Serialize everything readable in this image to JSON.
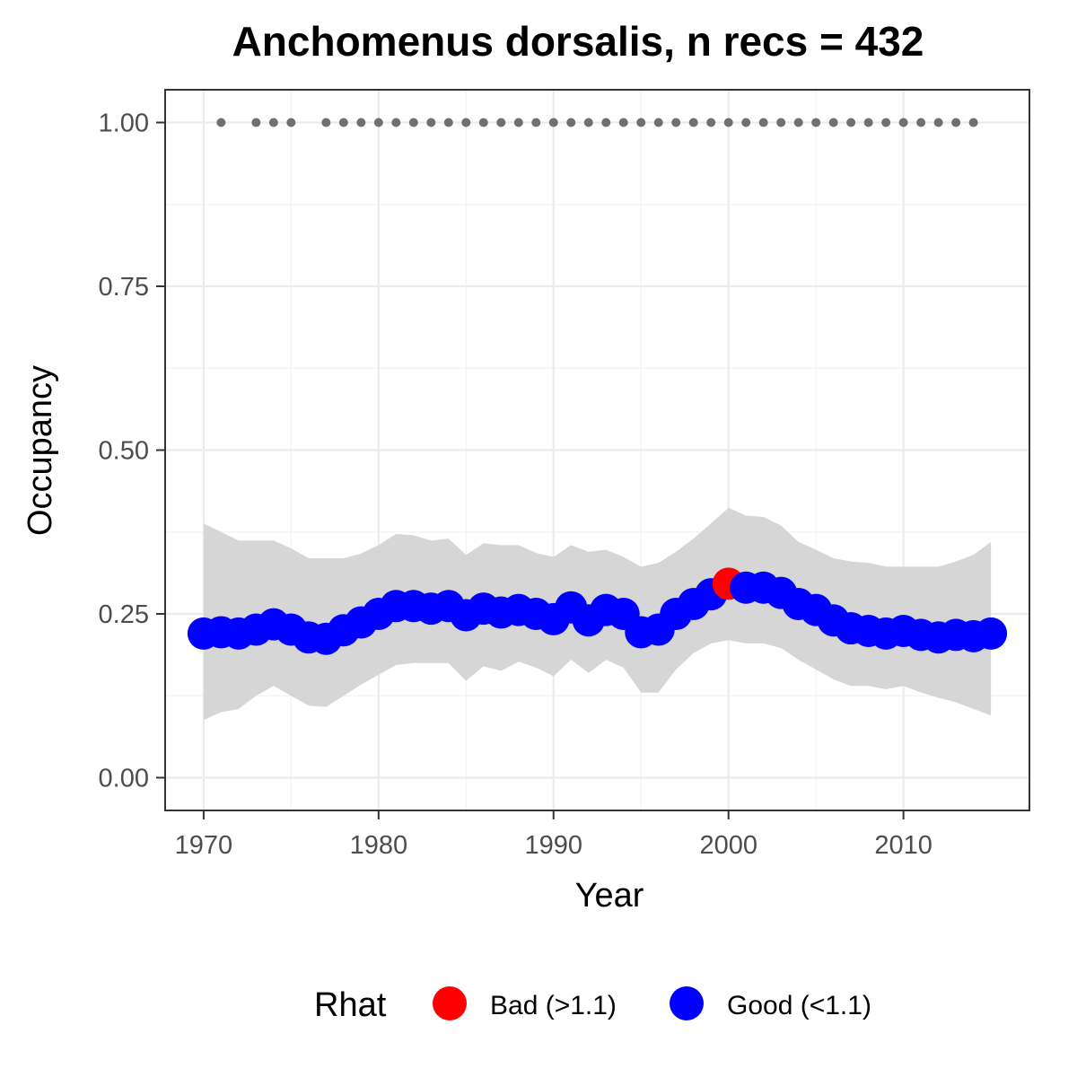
{
  "chart_data": {
    "type": "scatter",
    "title": "Anchomenus dorsalis, n recs = 432",
    "xlabel": "Year",
    "ylabel": "Occupancy",
    "xlim": [
      1967.8,
      2017.2
    ],
    "ylim": [
      -0.05,
      1.05
    ],
    "x_ticks": [
      1970,
      1980,
      1990,
      2000,
      2010
    ],
    "x_tick_labels": [
      "1970",
      "1980",
      "1990",
      "2000",
      "2010"
    ],
    "y_ticks": [
      0,
      0.25,
      0.5,
      0.75,
      1.0
    ],
    "y_tick_labels": [
      "0.00",
      "0.25",
      "0.50",
      "0.75",
      "1.00"
    ],
    "grid": true,
    "legend": {
      "position": "bottom",
      "title": "Rhat",
      "entries": [
        {
          "label": "Bad (>1.1)",
          "color": "#ff0000"
        },
        {
          "label": "Good (<1.1)",
          "color": "#0000ff"
        }
      ]
    },
    "series": [
      {
        "years": [
          1970,
          1971,
          1972,
          1973,
          1974,
          1975,
          1976,
          1977,
          1978,
          1979,
          1980,
          1981,
          1982,
          1983,
          1984,
          1985,
          1986,
          1987,
          1988,
          1989,
          1990,
          1991,
          1992,
          1993,
          1994,
          1995,
          1996,
          1997,
          1998,
          1999,
          2000,
          2001,
          2002,
          2003,
          2004,
          2005,
          2006,
          2007,
          2008,
          2009,
          2010,
          2011,
          2012,
          2013,
          2014,
          2015
        ],
        "occupancy": [
          0.22,
          0.222,
          0.22,
          0.226,
          0.234,
          0.226,
          0.214,
          0.212,
          0.225,
          0.237,
          0.25,
          0.262,
          0.262,
          0.258,
          0.262,
          0.248,
          0.258,
          0.252,
          0.256,
          0.25,
          0.242,
          0.26,
          0.24,
          0.256,
          0.25,
          0.222,
          0.226,
          0.25,
          0.265,
          0.28,
          0.296,
          0.29,
          0.29,
          0.282,
          0.265,
          0.256,
          0.24,
          0.228,
          0.224,
          0.22,
          0.224,
          0.218,
          0.214,
          0.218,
          0.216,
          0.22
        ],
        "rhat_class": [
          "Good",
          "Good",
          "Good",
          "Good",
          "Good",
          "Good",
          "Good",
          "Good",
          "Good",
          "Good",
          "Good",
          "Good",
          "Good",
          "Good",
          "Good",
          "Good",
          "Good",
          "Good",
          "Good",
          "Good",
          "Good",
          "Good",
          "Good",
          "Good",
          "Good",
          "Good",
          "Good",
          "Good",
          "Good",
          "Good",
          "Bad",
          "Good",
          "Good",
          "Good",
          "Good",
          "Good",
          "Good",
          "Good",
          "Good",
          "Good",
          "Good",
          "Good",
          "Good",
          "Good",
          "Good",
          "Good"
        ],
        "lower": [
          0.088,
          0.1,
          0.105,
          0.125,
          0.14,
          0.125,
          0.11,
          0.108,
          0.125,
          0.142,
          0.157,
          0.172,
          0.175,
          0.175,
          0.175,
          0.148,
          0.17,
          0.163,
          0.177,
          0.168,
          0.155,
          0.18,
          0.16,
          0.18,
          0.168,
          0.13,
          0.13,
          0.165,
          0.19,
          0.205,
          0.21,
          0.205,
          0.205,
          0.198,
          0.18,
          0.165,
          0.15,
          0.14,
          0.14,
          0.135,
          0.14,
          0.13,
          0.122,
          0.115,
          0.105,
          0.095
        ],
        "upper": [
          0.388,
          0.375,
          0.362,
          0.362,
          0.362,
          0.35,
          0.335,
          0.335,
          0.335,
          0.342,
          0.355,
          0.372,
          0.37,
          0.362,
          0.365,
          0.34,
          0.358,
          0.355,
          0.355,
          0.343,
          0.337,
          0.355,
          0.345,
          0.348,
          0.337,
          0.322,
          0.328,
          0.345,
          0.365,
          0.388,
          0.412,
          0.4,
          0.398,
          0.385,
          0.36,
          0.348,
          0.335,
          0.33,
          0.328,
          0.322,
          0.322,
          0.322,
          0.322,
          0.33,
          0.34,
          0.36
        ]
      },
      {
        "name": "records",
        "years": [
          1971,
          1973,
          1974,
          1975,
          1977,
          1978,
          1979,
          1980,
          1981,
          1982,
          1983,
          1984,
          1985,
          1986,
          1987,
          1988,
          1989,
          1990,
          1991,
          1992,
          1993,
          1994,
          1995,
          1996,
          1997,
          1998,
          1999,
          2000,
          2001,
          2002,
          2003,
          2004,
          2005,
          2006,
          2007,
          2008,
          2009,
          2010,
          2011,
          2012,
          2013,
          2014
        ],
        "value": 1.0
      }
    ],
    "colors": {
      "ribbon": "#d6d6d6",
      "records_point": "#707070",
      "grid_major": "#ebebeb",
      "grid_minor": "#f3f3f3",
      "panel_border": "#333333",
      "tick": "#333333"
    }
  }
}
